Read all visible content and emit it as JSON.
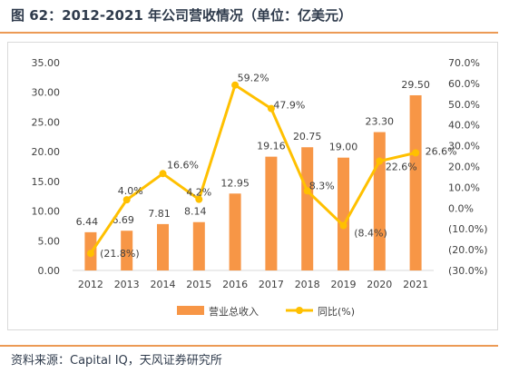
{
  "title": "图 62：2012-2021 年公司营收情况（单位：亿美元）",
  "source": "资料来源：Capital IQ，天风证券研究所",
  "colors": {
    "bar": "#F79646",
    "line": "#FFC000",
    "title_rule": "#EC9A55",
    "text": "#404040"
  },
  "chart_data": {
    "type": "bar",
    "categories": [
      "2012",
      "2013",
      "2014",
      "2015",
      "2016",
      "2017",
      "2018",
      "2019",
      "2020",
      "2021"
    ],
    "series": [
      {
        "name": "营业总收入",
        "type": "bar",
        "axis": "left",
        "values": [
          6.44,
          6.69,
          7.81,
          8.14,
          12.95,
          19.16,
          20.75,
          19.0,
          23.3,
          29.5
        ],
        "labels": [
          "6.44",
          "6.69",
          "7.81",
          "8.14",
          "12.95",
          "19.16",
          "20.75",
          "19.00",
          "23.30",
          "29.50"
        ]
      },
      {
        "name": "同比(%)",
        "type": "line",
        "axis": "right",
        "values": [
          -21.8,
          4.0,
          16.6,
          4.2,
          59.2,
          47.9,
          8.3,
          -8.4,
          22.6,
          26.6
        ],
        "labels": [
          "(21.8%)",
          "4.0%",
          "16.6%",
          "4.2%",
          "59.2%",
          "47.9%",
          "8.3%",
          "(8.4%)",
          "22.6%",
          "26.6%"
        ]
      }
    ],
    "y_left": {
      "min": 0,
      "max": 35,
      "ticks": [
        0,
        5,
        10,
        15,
        20,
        25,
        30,
        35
      ],
      "tick_labels": [
        "0.00",
        "5.00",
        "10.00",
        "15.00",
        "20.00",
        "25.00",
        "30.00",
        "35.00"
      ]
    },
    "y_right": {
      "min": -30,
      "max": 70,
      "ticks": [
        -30,
        -20,
        -10,
        0,
        10,
        20,
        30,
        40,
        50,
        60,
        70
      ],
      "tick_labels": [
        "(30.0%)",
        "(20.0%)",
        "(10.0%)",
        "0.0%",
        "10.0%",
        "20.0%",
        "30.0%",
        "40.0%",
        "50.0%",
        "60.0%",
        "70.0%"
      ]
    },
    "legend": {
      "position": "bottom",
      "items": [
        "营业总收入",
        "同比(%)"
      ]
    },
    "grid": false
  }
}
